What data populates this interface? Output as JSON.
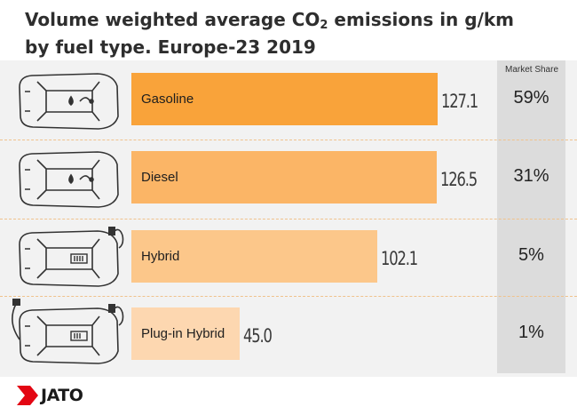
{
  "title": {
    "line1_prefix": "Volume weighted average CO",
    "line1_subscript": "2",
    "line1_suffix": " emissions in g/km",
    "line2": "by fuel type. Europe-23 2019"
  },
  "market_share_header": "Market Share",
  "chart_data": {
    "type": "bar",
    "orientation": "horizontal",
    "categories": [
      "Gasoline",
      "Diesel",
      "Hybrid",
      "Plug-in Hybrid"
    ],
    "values": [
      127.1,
      126.5,
      102.1,
      45.0
    ],
    "value_labels": [
      "127.1",
      "126.5",
      "102.1",
      "45.0"
    ],
    "market_share": [
      "59%",
      "31%",
      "5%",
      "1%"
    ],
    "colors": [
      "#f9a33a",
      "#fbb566",
      "#fcc78a",
      "#fdd7b0"
    ],
    "xlim": [
      0,
      131
    ],
    "grid": false
  },
  "icons": [
    "car-gasoline-icon",
    "car-diesel-icon",
    "car-hybrid-icon",
    "car-plugin-hybrid-icon"
  ],
  "brand": {
    "logo_text": "JATO",
    "logo_color": "#e30613"
  }
}
